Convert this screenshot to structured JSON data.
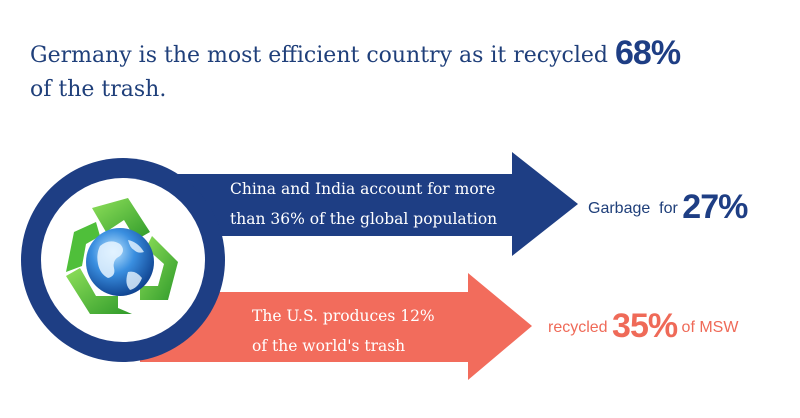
{
  "headline": {
    "text_before": "Germany is the most efficient country as it recycled",
    "highlight": "68%",
    "text_after": "of the trash."
  },
  "arrow_top": {
    "line1": "China and India account for more",
    "line2": "than 36% of the global population",
    "color": "#1e3e84"
  },
  "arrow_bottom": {
    "line1": "The U.S. produces 12%",
    "line2": "of the world's trash",
    "color": "#f26c5c"
  },
  "stat_top": {
    "label": "Garbage  for",
    "value": "27%"
  },
  "stat_bottom": {
    "label_before": "recycled",
    "value": "35%",
    "label_after": "of MSW"
  },
  "emblem": {
    "icon": "recycle-globe-icon",
    "ring_color": "#1e3e84"
  }
}
